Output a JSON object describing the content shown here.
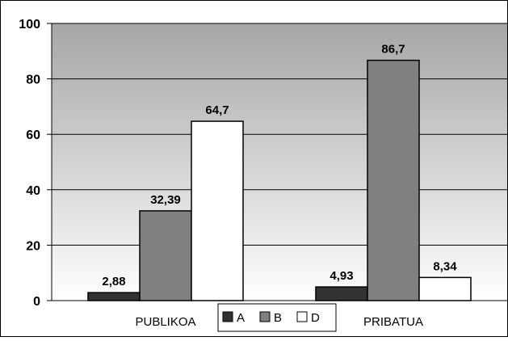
{
  "chart_data": {
    "type": "bar",
    "categories": [
      "PUBLIKOA",
      "PRIBATUA"
    ],
    "series": [
      {
        "name": "A",
        "values": [
          2.88,
          4.93
        ],
        "labels": [
          "2,88",
          "4,93"
        ],
        "color": "#333333"
      },
      {
        "name": "B",
        "values": [
          32.39,
          86.7
        ],
        "labels": [
          "32,39",
          "86,7"
        ],
        "color": "#808080"
      },
      {
        "name": "D",
        "values": [
          64.7,
          8.34
        ],
        "labels": [
          "64,7",
          "8,34"
        ],
        "color": "#ffffff"
      }
    ],
    "yticks": [
      "0",
      "20",
      "40",
      "60",
      "80",
      "100"
    ],
    "ylim": [
      0,
      100
    ],
    "title": "",
    "xlabel": "",
    "ylabel": "",
    "grid": true,
    "legend_position": "bottom-center",
    "plot_background": "gray-to-white gradient"
  }
}
